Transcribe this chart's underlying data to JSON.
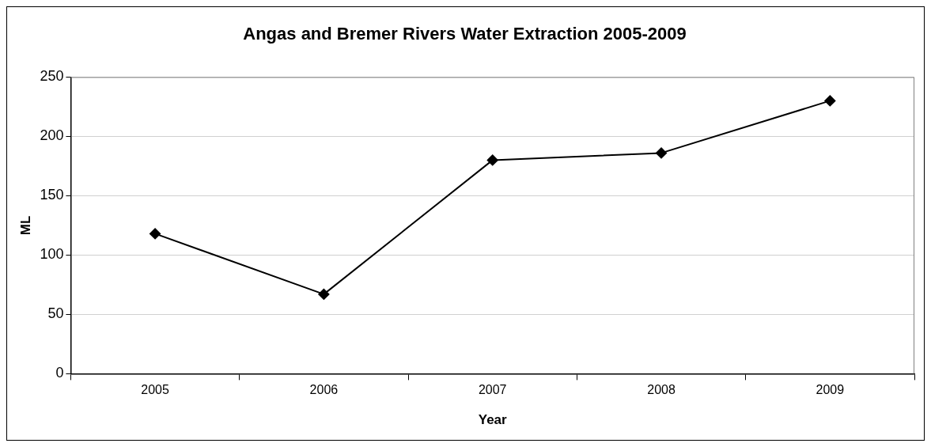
{
  "chart_data": {
    "type": "line",
    "title": "Angas and Bremer Rivers Water Extraction 2005-2009",
    "xlabel": "Year",
    "ylabel": "ML",
    "categories": [
      "2005",
      "2006",
      "2007",
      "2008",
      "2009"
    ],
    "series": [
      {
        "color": "#000000",
        "values": [
          118,
          67,
          180,
          186,
          230
        ]
      }
    ],
    "ylim": [
      0,
      250
    ],
    "yticks": [
      0,
      50,
      100,
      150,
      200,
      250
    ],
    "grid": "y",
    "legend": false,
    "marker": "diamond",
    "line_style": "solid"
  }
}
